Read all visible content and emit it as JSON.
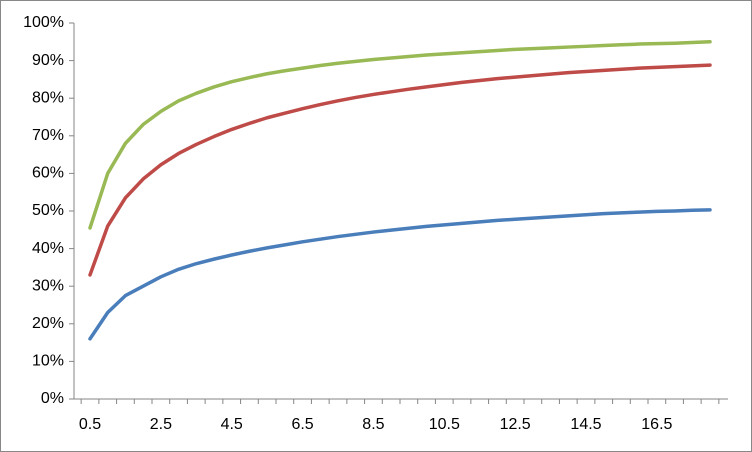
{
  "chart_data": {
    "type": "line",
    "categories": [
      "0.5",
      null,
      null,
      null,
      "2.5",
      null,
      null,
      null,
      "4.5",
      null,
      null,
      null,
      "6.5",
      null,
      null,
      null,
      "8.5",
      null,
      null,
      null,
      "10.5",
      null,
      null,
      null,
      "12.5",
      null,
      null,
      null,
      "14.5",
      null,
      null,
      null,
      "16.5",
      null,
      null,
      null
    ],
    "series": [
      {
        "color": "#4a7ebb",
        "values": [
          16,
          23,
          27.5,
          30,
          32.5,
          34.5,
          36,
          37.2,
          38.3,
          39.3,
          40.2,
          41,
          41.8,
          42.5,
          43.2,
          43.8,
          44.4,
          44.9,
          45.4,
          45.9,
          46.3,
          46.7,
          47.1,
          47.5,
          47.8,
          48.1,
          48.4,
          48.7,
          49,
          49.3,
          49.5,
          49.7,
          49.9,
          50,
          50.2,
          50.3
        ]
      },
      {
        "color": "#be4b48",
        "values": [
          33,
          46,
          53.5,
          58.5,
          62.3,
          65.3,
          67.7,
          69.8,
          71.7,
          73.3,
          74.8,
          76,
          77.2,
          78.3,
          79.3,
          80.2,
          81,
          81.7,
          82.4,
          83,
          83.6,
          84.2,
          84.7,
          85.2,
          85.6,
          86,
          86.4,
          86.8,
          87.1,
          87.4,
          87.7,
          88,
          88.2,
          88.4,
          88.6,
          88.8
        ]
      },
      {
        "color": "#98b954",
        "values": [
          45.5,
          60,
          68,
          73,
          76.5,
          79.3,
          81.3,
          83,
          84.4,
          85.5,
          86.5,
          87.3,
          88,
          88.7,
          89.3,
          89.8,
          90.3,
          90.7,
          91.1,
          91.5,
          91.8,
          92.1,
          92.4,
          92.7,
          93,
          93.2,
          93.4,
          93.6,
          93.8,
          94,
          94.2,
          94.4,
          94.5,
          94.6,
          94.8,
          95
        ]
      }
    ],
    "ylim": [
      0,
      100
    ],
    "yticks": [
      {
        "value": 0,
        "label": "0%"
      },
      {
        "value": 10,
        "label": "10%"
      },
      {
        "value": 20,
        "label": "20%"
      },
      {
        "value": 30,
        "label": "30%"
      },
      {
        "value": 40,
        "label": "40%"
      },
      {
        "value": 50,
        "label": "50%"
      },
      {
        "value": 60,
        "label": "60%"
      },
      {
        "value": 70,
        "label": "70%"
      },
      {
        "value": 80,
        "label": "80%"
      },
      {
        "value": 90,
        "label": "90%"
      },
      {
        "value": 100,
        "label": "100%"
      }
    ],
    "grid": false
  }
}
